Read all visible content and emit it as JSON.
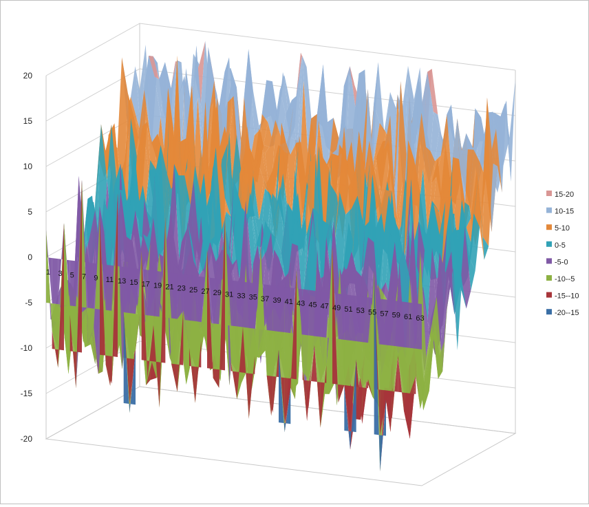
{
  "chart_data": {
    "type": "surface",
    "title": "",
    "xlabel": "",
    "ylabel": "",
    "zlim": [
      -20,
      20
    ],
    "z_ticks": [
      20,
      15,
      10,
      5,
      0,
      -5,
      -10,
      -15,
      -20
    ],
    "x_categories": [
      "1",
      "3",
      "5",
      "7",
      "9",
      "11",
      "13",
      "15",
      "17",
      "19",
      "21",
      "23",
      "25",
      "27",
      "29",
      "31",
      "33",
      "35",
      "37",
      "39",
      "41",
      "43",
      "45",
      "47",
      "49",
      "51",
      "53",
      "55",
      "57",
      "59",
      "61",
      "63"
    ],
    "x_count": 64,
    "band_legend": [
      {
        "label": "15-20",
        "color": "#d99694"
      },
      {
        "label": "10-15",
        "color": "#95b3d7"
      },
      {
        "label": "5-10",
        "color": "#e3883a"
      },
      {
        "label": "0-5",
        "color": "#31a2b6"
      },
      {
        "label": "-5-0",
        "color": "#7f59a5"
      },
      {
        "label": "-10--5",
        "color": "#8db143"
      },
      {
        "label": "-15--10",
        "color": "#a7353a"
      },
      {
        "label": "-20--15",
        "color": "#3a6ea5"
      }
    ],
    "legend_position": "right",
    "grid": true,
    "front_edge_values": [
      3,
      -8,
      -12,
      4,
      -6,
      -14,
      9,
      -9,
      -7,
      5,
      -11,
      -13,
      8,
      -5,
      -16,
      -9,
      2,
      -12,
      -6,
      -15,
      6,
      -10,
      -13,
      -4,
      -8,
      -14,
      -7,
      3,
      -11,
      -12,
      7,
      -9,
      -13,
      -5,
      -15,
      -8,
      4,
      -10,
      -14,
      -7,
      -16,
      -11,
      2,
      -9,
      -13,
      -6,
      -15,
      -8,
      5,
      -12,
      -10,
      -17,
      -7,
      -14,
      -9,
      3,
      -19,
      -11,
      -13,
      -6,
      -12,
      -15,
      -8,
      -10
    ]
  }
}
